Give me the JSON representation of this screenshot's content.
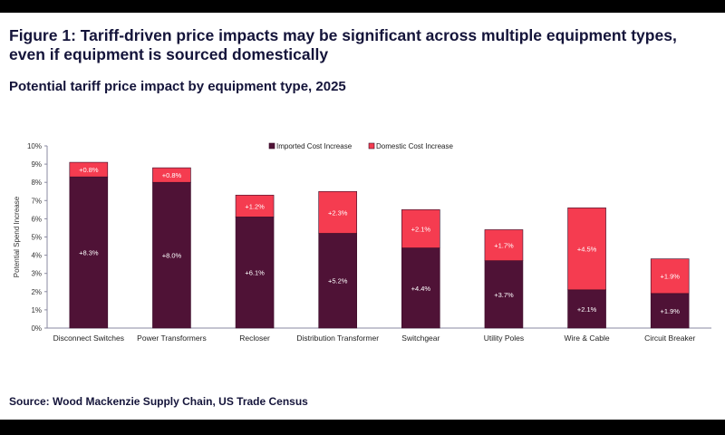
{
  "title": "Figure 1: Tariff-driven price impacts may be significant across multiple equipment types, even if equipment is sourced domestically",
  "subtitle": "Potential tariff price impact by equipment type, 2025",
  "source": "Source: Wood Mackenzie Supply Chain, US Trade Census",
  "chart_data": {
    "type": "bar",
    "stacked": true,
    "categories": [
      "Disconnect Switches",
      "Power Transformers",
      "Recloser",
      "Distribution Transformer",
      "Switchgear",
      "Utility Poles",
      "Wire & Cable",
      "Circuit Breaker"
    ],
    "series": [
      {
        "name": "Imported Cost Increase",
        "color": "#4f1236",
        "values": [
          8.3,
          8.0,
          6.1,
          5.2,
          4.4,
          3.7,
          2.1,
          1.9
        ],
        "labels": [
          "+8.3%",
          "+8.0%",
          "+6.1%",
          "+5.2%",
          "+4.4%",
          "+3.7%",
          "+2.1%",
          "+1.9%"
        ]
      },
      {
        "name": "Domestic Cost Increase",
        "color": "#f53c50",
        "values": [
          0.8,
          0.8,
          1.2,
          2.3,
          2.1,
          1.7,
          4.5,
          1.9
        ],
        "labels": [
          "+0.8%",
          "+0.8%",
          "+1.2%",
          "+2.3%",
          "+2.1%",
          "+1.7%",
          "+4.5%",
          "+1.9%"
        ]
      }
    ],
    "ylabel": "Potential Spend Increase",
    "ylim": [
      0,
      10
    ],
    "yticks": [
      "0%",
      "1%",
      "2%",
      "3%",
      "4%",
      "5%",
      "6%",
      "7%",
      "8%",
      "9%",
      "10%"
    ],
    "grid": false,
    "legend": "top"
  }
}
